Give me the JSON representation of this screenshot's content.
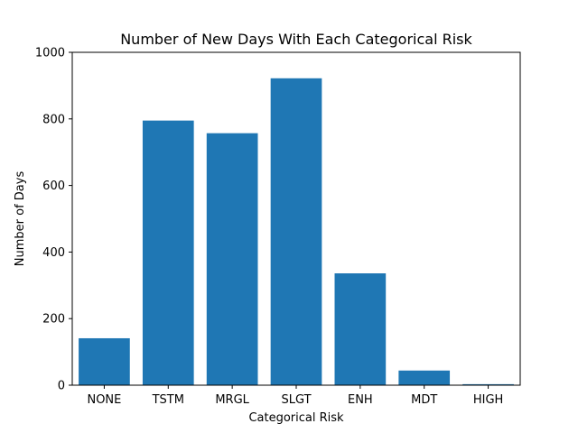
{
  "chart_data": {
    "type": "bar",
    "title": "Number of New Days With Each Categorical Risk",
    "xlabel": "Categorical Risk",
    "ylabel": "Number of Days",
    "categories": [
      "NONE",
      "TSTM",
      "MRGL",
      "SLGT",
      "ENH",
      "MDT",
      "HIGH"
    ],
    "values": [
      141,
      795,
      757,
      922,
      336,
      44,
      3
    ],
    "ylim": [
      0,
      1000
    ],
    "yticks": [
      0,
      200,
      400,
      600,
      800,
      1000
    ],
    "bar_color": "#1f77b4",
    "grid": false,
    "legend": "none"
  }
}
